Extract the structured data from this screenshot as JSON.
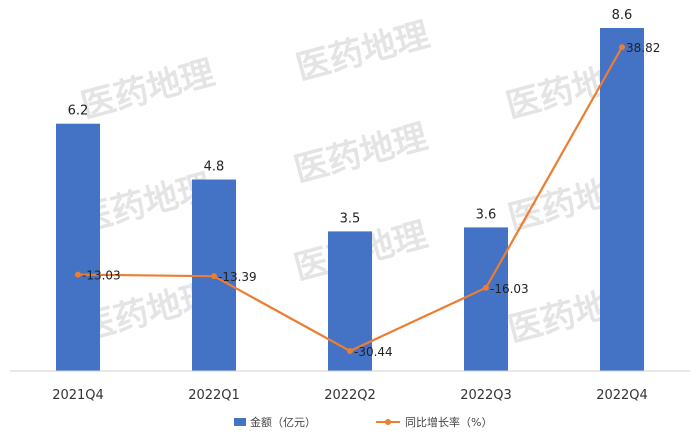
{
  "chart_data": {
    "type": "bar",
    "categories": [
      "2021Q4",
      "2022Q1",
      "2022Q2",
      "2022Q3",
      "2022Q4"
    ],
    "series": [
      {
        "name": "金额（亿元）",
        "type": "bar",
        "axis": "left",
        "color": "#4472C4",
        "values": [
          6.2,
          4.8,
          3.5,
          3.6,
          8.6
        ],
        "labels": [
          "6.2",
          "4.8",
          "3.5",
          "3.6",
          "8.6"
        ]
      },
      {
        "name": "同比增长率（%）",
        "type": "line",
        "axis": "right",
        "color": "#ED7D31",
        "values": [
          -13.03,
          -13.39,
          -30.44,
          -16.03,
          38.82
        ],
        "labels": [
          "-13.03",
          "-13.39",
          "-30.44",
          "-16.03",
          "38.82"
        ]
      }
    ],
    "ylim_left": [
      0,
      8.8
    ],
    "ylim_right": [
      -35,
      45
    ],
    "grid": false,
    "legend_position": "bottom"
  },
  "watermark": "医药地理"
}
